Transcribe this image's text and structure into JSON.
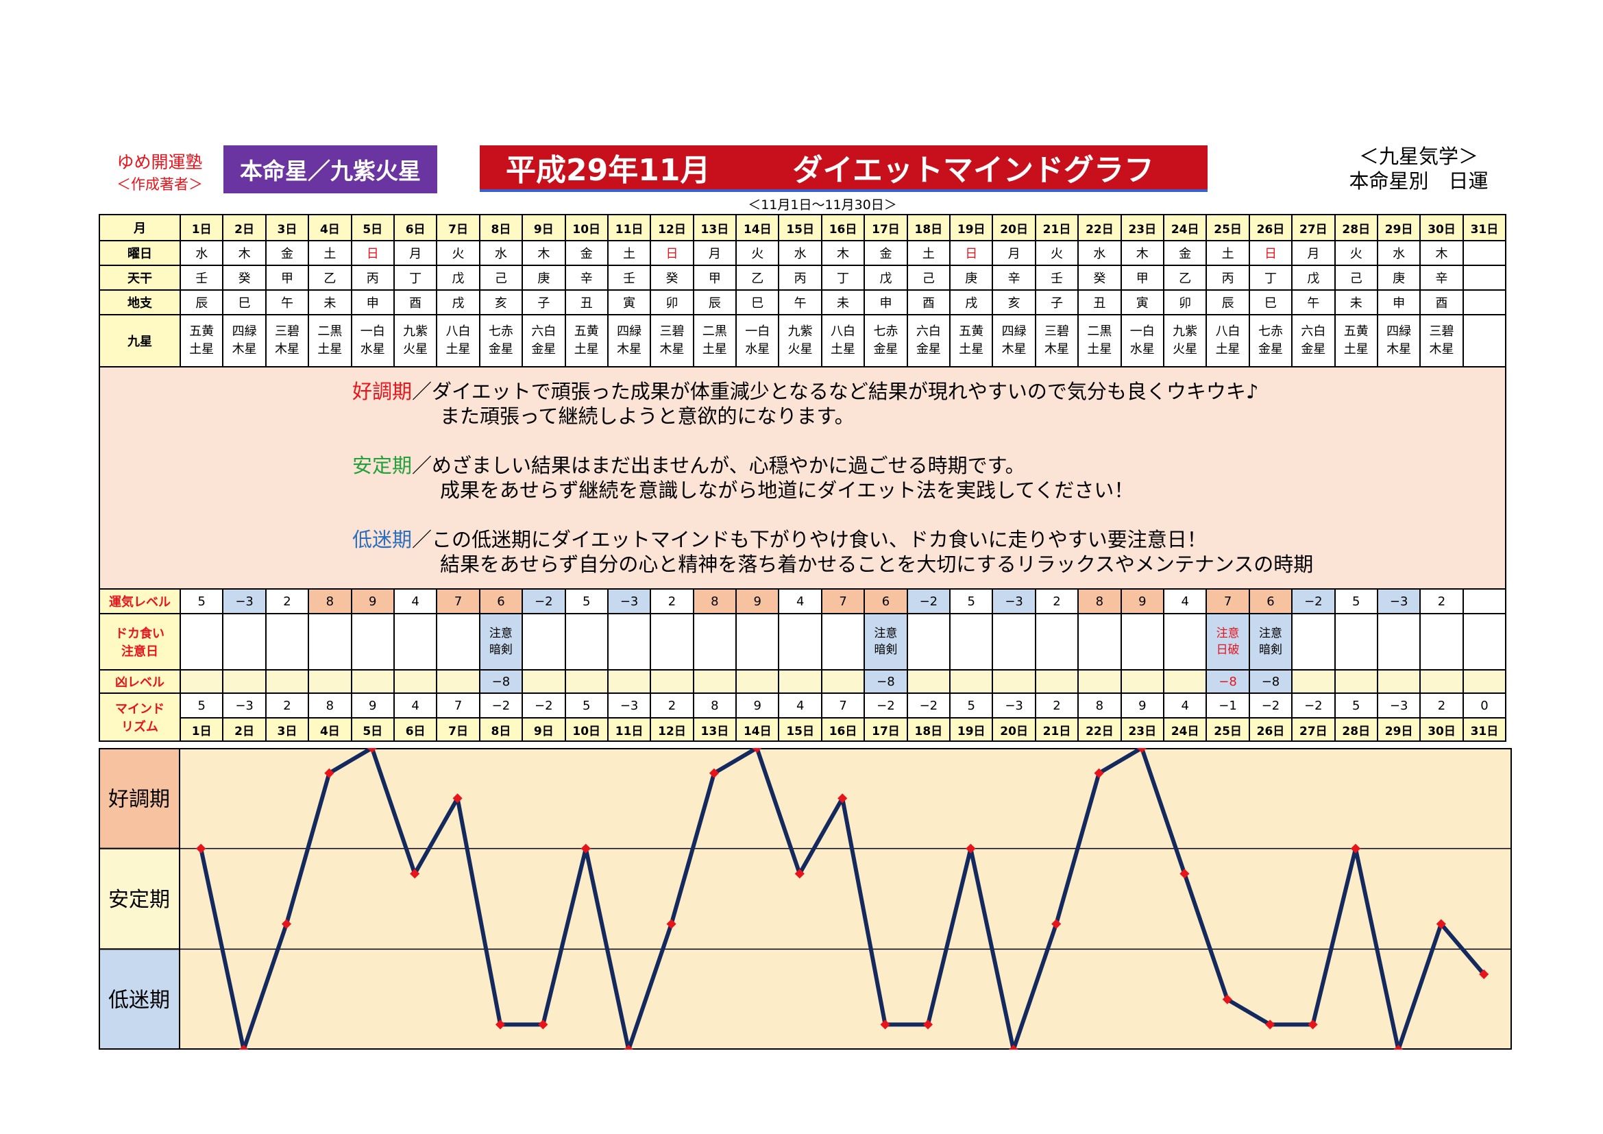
{
  "header": {
    "author_name": "ゆめ開運塾",
    "author_sub": "＜作成著者＞",
    "honmei_label": "本命星／九紫火星",
    "title_left": "平成29年11月",
    "title_right": "ダイエットマインドグラフ",
    "period": "＜11月1日～11月30日＞",
    "corner_line1": "＜九星気学＞",
    "corner_line2": "本命星別　日運"
  },
  "row_labels": {
    "month": "月",
    "weekday": "曜日",
    "kan": "天干",
    "shi": "地支",
    "kyusei": "九星",
    "unki": "運気レベル",
    "doka1": "ドカ食い",
    "doka2": "注意日",
    "kyo": "凶レベル",
    "mind1": "マインド",
    "mind2": "リズム"
  },
  "days": [
    "1日",
    "2日",
    "3日",
    "4日",
    "5日",
    "6日",
    "7日",
    "8日",
    "9日",
    "10日",
    "11日",
    "12日",
    "13日",
    "14日",
    "15日",
    "16日",
    "17日",
    "18日",
    "19日",
    "20日",
    "21日",
    "22日",
    "23日",
    "24日",
    "25日",
    "26日",
    "27日",
    "28日",
    "29日",
    "30日",
    "31日"
  ],
  "weekdays": [
    "水",
    "木",
    "金",
    "土",
    "日",
    "月",
    "火",
    "水",
    "木",
    "金",
    "土",
    "日",
    "月",
    "火",
    "水",
    "木",
    "金",
    "土",
    "日",
    "月",
    "火",
    "水",
    "木",
    "金",
    "土",
    "日",
    "月",
    "火",
    "水",
    "木",
    ""
  ],
  "kan": [
    "壬",
    "癸",
    "甲",
    "乙",
    "丙",
    "丁",
    "戊",
    "己",
    "庚",
    "辛",
    "壬",
    "癸",
    "甲",
    "乙",
    "丙",
    "丁",
    "戊",
    "己",
    "庚",
    "辛",
    "壬",
    "癸",
    "甲",
    "乙",
    "丙",
    "丁",
    "戊",
    "己",
    "庚",
    "辛",
    ""
  ],
  "shi": [
    "辰",
    "巳",
    "午",
    "未",
    "申",
    "酉",
    "戌",
    "亥",
    "子",
    "丑",
    "寅",
    "卯",
    "辰",
    "巳",
    "午",
    "未",
    "申",
    "酉",
    "戌",
    "亥",
    "子",
    "丑",
    "寅",
    "卯",
    "辰",
    "巳",
    "午",
    "未",
    "申",
    "酉",
    ""
  ],
  "kyusei_top": [
    "五黄",
    "四緑",
    "三碧",
    "二黒",
    "一白",
    "九紫",
    "八白",
    "七赤",
    "六白",
    "五黄",
    "四緑",
    "三碧",
    "二黒",
    "一白",
    "九紫",
    "八白",
    "七赤",
    "六白",
    "五黄",
    "四緑",
    "三碧",
    "二黒",
    "一白",
    "九紫",
    "八白",
    "七赤",
    "六白",
    "五黄",
    "四緑",
    "三碧",
    ""
  ],
  "kyusei_bottom": [
    "土星",
    "木星",
    "木星",
    "土星",
    "水星",
    "火星",
    "土星",
    "金星",
    "金星",
    "土星",
    "木星",
    "木星",
    "土星",
    "水星",
    "火星",
    "土星",
    "金星",
    "金星",
    "土星",
    "木星",
    "木星",
    "土星",
    "水星",
    "火星",
    "土星",
    "金星",
    "金星",
    "土星",
    "木星",
    "木星",
    ""
  ],
  "description": {
    "good_head": "好調期",
    "good_line1": "／ダイエットで頑張った成果が体重減少となるなど結果が現れやすいので気分も良くウキウキ♪",
    "good_line2": "また頑張って継続しようと意欲的になります。",
    "stable_head": "安定期",
    "stable_line1": "／めざましい結果はまだ出ませんが、心穏やかに過ごせる時期です。",
    "stable_line2": "成果をあせらず継続を意識しながら地道にダイエット法を実践してください！",
    "low_head": "低迷期",
    "low_line1": "／この低迷期にダイエットマインドも下がりやけ食い、ドカ食いに走りやすい要注意日！",
    "low_line2": "結果をあせらず自分の心と精神を落ち着かせることを大切にするリラックスやメンテナンスの時期"
  },
  "unki": [
    "5",
    "−3",
    "2",
    "8",
    "9",
    "4",
    "7",
    "6",
    "−2",
    "5",
    "−3",
    "2",
    "8",
    "9",
    "4",
    "7",
    "6",
    "−2",
    "5",
    "−3",
    "2",
    "8",
    "9",
    "4",
    "7",
    "6",
    "−2",
    "5",
    "−3",
    "2",
    ""
  ],
  "doka_top": [
    "",
    "",
    "",
    "",
    "",
    "",
    "",
    "注意",
    "",
    "",
    "",
    "",
    "",
    "",
    "",
    "",
    "注意",
    "",
    "",
    "",
    "",
    "",
    "",
    "",
    "注意",
    "注意",
    "",
    "",
    "",
    "",
    ""
  ],
  "doka_bottom": [
    "",
    "",
    "",
    "",
    "",
    "",
    "",
    "暗剣",
    "",
    "",
    "",
    "",
    "",
    "",
    "",
    "",
    "暗剣",
    "",
    "",
    "",
    "",
    "",
    "",
    "",
    "日破",
    "暗剣",
    "",
    "",
    "",
    "",
    ""
  ],
  "kyo": [
    "",
    "",
    "",
    "",
    "",
    "",
    "",
    "−8",
    "",
    "",
    "",
    "",
    "",
    "",
    "",
    "",
    "−8",
    "",
    "",
    "",
    "",
    "",
    "",
    "",
    "−8",
    "−8",
    "",
    "",
    "",
    "",
    ""
  ],
  "mind": [
    "5",
    "−3",
    "2",
    "8",
    "9",
    "4",
    "7",
    "−2",
    "−2",
    "5",
    "−3",
    "2",
    "8",
    "9",
    "4",
    "7",
    "−2",
    "−2",
    "5",
    "−3",
    "2",
    "8",
    "9",
    "4",
    "−1",
    "−2",
    "−2",
    "5",
    "−3",
    "2",
    "0"
  ],
  "colors": {
    "purple": "#6a35a0",
    "red": "#c8101c",
    "pink_band": "#f7c29f",
    "yellow_band": "#fdf7cf",
    "blue_band": "#c6d9ef",
    "plot_bg": "#fdecc8",
    "line": "#142a5e",
    "marker": "#e8141c"
  },
  "chart_data": {
    "type": "line",
    "title": "",
    "xlabel": "",
    "ylabel": "",
    "categories": [
      "1日",
      "2日",
      "3日",
      "4日",
      "5日",
      "6日",
      "7日",
      "8日",
      "9日",
      "10日",
      "11日",
      "12日",
      "13日",
      "14日",
      "15日",
      "16日",
      "17日",
      "18日",
      "19日",
      "20日",
      "21日",
      "22日",
      "23日",
      "24日",
      "25日",
      "26日",
      "27日",
      "28日",
      "29日",
      "30日",
      "31日"
    ],
    "series": [
      {
        "values": [
          5,
          -3,
          2,
          8,
          9,
          4,
          7,
          -2,
          -2,
          5,
          -3,
          2,
          8,
          9,
          4,
          7,
          -2,
          -2,
          5,
          -3,
          2,
          8,
          9,
          4,
          -1,
          -2,
          -2,
          5,
          -3,
          2,
          0
        ]
      }
    ],
    "ylim": [
      -3,
      9
    ],
    "bands": [
      {
        "label": "好調期",
        "from": 5,
        "to": 9
      },
      {
        "label": "安定期",
        "from": 1,
        "to": 5
      },
      {
        "label": "低迷期",
        "from": -3,
        "to": 1
      }
    ],
    "grid": true,
    "legend": "none"
  }
}
